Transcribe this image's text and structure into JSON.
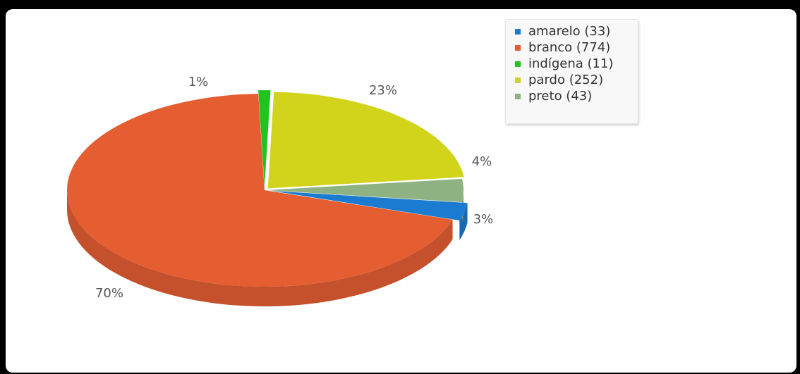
{
  "chart_data": {
    "type": "pie",
    "title": "",
    "variant": "3d-exploded",
    "legend_position": "top-right",
    "slices": [
      {
        "label": "amarelo",
        "value": 33,
        "percent_label": "3%",
        "color": "#1a7bd0",
        "legend_text": "amarelo (33)"
      },
      {
        "label": "branco",
        "value": 774,
        "percent_label": "70%",
        "color": "#e45e32",
        "legend_text": "branco (774)"
      },
      {
        "label": "indígena",
        "value": 11,
        "percent_label": "1%",
        "color": "#20c41e",
        "legend_text": "indígena (11)"
      },
      {
        "label": "pardo",
        "value": 252,
        "percent_label": "23%",
        "color": "#d2d41c",
        "legend_text": "pardo (252)"
      },
      {
        "label": "preto",
        "value": 43,
        "percent_label": "4%",
        "color": "#8fb283",
        "legend_text": "preto (43)"
      }
    ]
  }
}
